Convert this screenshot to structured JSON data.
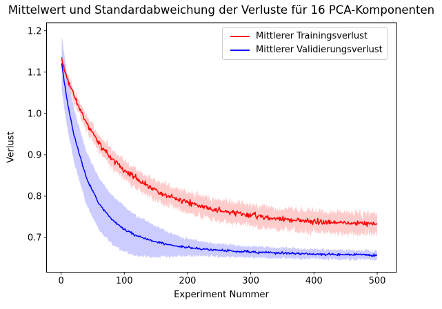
{
  "figure_title": "Mittelwert und Standardabweichung der Verluste für 16 PCA-Komponenten",
  "chart_data": {
    "type": "line",
    "title": "Mittelwert und Standardabweichung der Verluste für 16 PCA-Komponenten",
    "xlabel": "Experiment Nummer",
    "ylabel": "Verlust",
    "xlim": [
      -23,
      530.5
    ],
    "ylim": [
      0.616,
      1.2195
    ],
    "x_range": [
      1,
      500
    ],
    "xticks": [
      0,
      100,
      200,
      300,
      400,
      500
    ],
    "xtick_labels": [
      "0",
      "100",
      "200",
      "300",
      "400",
      "500"
    ],
    "yticks": [
      0.7,
      0.8,
      0.9,
      1.0,
      1.1,
      1.2
    ],
    "ytick_labels": [
      "0.7",
      "0.8",
      "0.9",
      "1.0",
      "1.1",
      "1.2"
    ],
    "grid": false,
    "legend_position": "upper-right-inside",
    "band_alpha": 0.2,
    "seed": 7,
    "keypoints_x": [
      1,
      5,
      10,
      20,
      40,
      60,
      80,
      100,
      120,
      140,
      160,
      180,
      200,
      220,
      240,
      260,
      280,
      300,
      320,
      340,
      360,
      380,
      400,
      420,
      440,
      460,
      480,
      500
    ],
    "series": [
      {
        "name": "Mittlerer Trainingsverlust",
        "color": "#ff0000",
        "mean": [
          1.127,
          1.107,
          1.084,
          1.043,
          0.978,
          0.929,
          0.892,
          0.863,
          0.84,
          0.822,
          0.807,
          0.795,
          0.785,
          0.776,
          0.769,
          0.763,
          0.758,
          0.753,
          0.749,
          0.746,
          0.743,
          0.741,
          0.739,
          0.737,
          0.736,
          0.735,
          0.734,
          0.732
        ],
        "std": [
          0.011,
          0.012,
          0.013,
          0.015,
          0.018,
          0.02,
          0.021,
          0.022,
          0.023,
          0.024,
          0.025,
          0.025,
          0.025,
          0.026,
          0.026,
          0.026,
          0.026,
          0.026,
          0.026,
          0.026,
          0.026,
          0.026,
          0.026,
          0.026,
          0.026,
          0.026,
          0.026,
          0.026
        ],
        "line_noise": 0.0032,
        "band_noise": 0.0045
      },
      {
        "name": "Mittlerer Validierungsverlust",
        "color": "#0000ff",
        "mean": [
          1.121,
          1.077,
          1.028,
          0.949,
          0.844,
          0.781,
          0.744,
          0.72,
          0.704,
          0.694,
          0.686,
          0.68,
          0.676,
          0.673,
          0.67,
          0.668,
          0.666,
          0.665,
          0.664,
          0.663,
          0.662,
          0.661,
          0.66,
          0.659,
          0.659,
          0.658,
          0.658,
          0.657
        ],
        "std": [
          0.065,
          0.065,
          0.064,
          0.064,
          0.064,
          0.062,
          0.059,
          0.055,
          0.048,
          0.042,
          0.033,
          0.026,
          0.021,
          0.018,
          0.016,
          0.015,
          0.014,
          0.014,
          0.013,
          0.013,
          0.013,
          0.012,
          0.012,
          0.012,
          0.012,
          0.011,
          0.011,
          0.011
        ],
        "line_noise": 0.0013,
        "band_noise": 0.002
      }
    ]
  }
}
